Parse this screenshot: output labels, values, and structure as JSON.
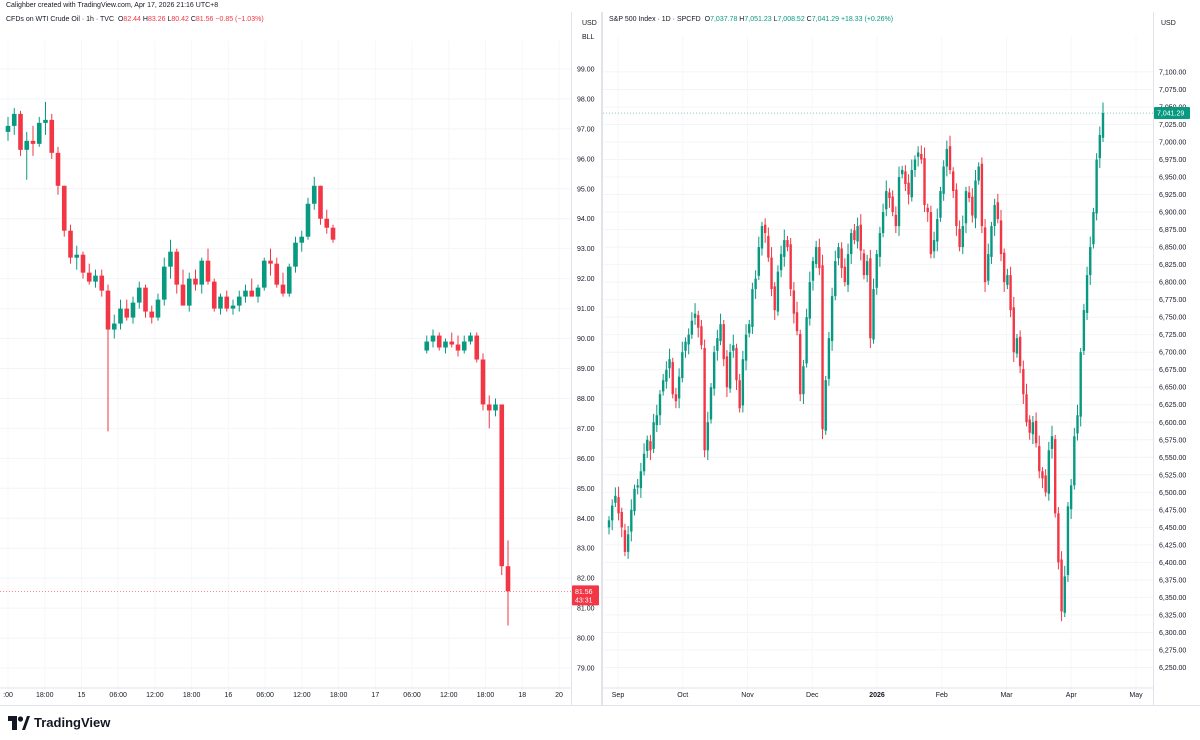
{
  "header": {
    "text": "Calighber created with TradingView.com, Apr 17, 2026 21:16 UTC+8"
  },
  "footer": {
    "brand": "TradingView"
  },
  "left_legend": {
    "title": "CFDs on WTI Crude Oil · 1h · TVC",
    "o": "O",
    "o_val": "82.44",
    "h": "H",
    "h_val": "83.26",
    "l": "L",
    "l_val": "80.42",
    "c": "C",
    "c_val": "81.56",
    "chg": "−0.85 (−1.03%)"
  },
  "left_currency": "USD",
  "left_unit": "BLL",
  "left_price_tag": "81.56",
  "left_countdown": "43:31",
  "right_legend": {
    "title": "S&P 500 Index · 1D · SPCFD",
    "o": "O",
    "o_val": "7,037.78",
    "h": "H",
    "h_val": "7,051.23",
    "l": "L",
    "l_val": "7,008.52",
    "c": "C",
    "c_val": "7,041.29",
    "chg": "+18.33 (+0.26%)"
  },
  "right_currency": "USD",
  "right_price_tag": "7,041.29",
  "colors": {
    "up": "#089981",
    "down": "#f23645",
    "text": "#131722",
    "grid": "#f0f3fa"
  },
  "chart_data": [
    {
      "type": "candlestick",
      "title": "CFDs on WTI Crude Oil · 1h · TVC",
      "y_range": [
        78.6,
        99.6
      ],
      "y_ticks": [
        "99.00",
        "98.00",
        "97.00",
        "96.00",
        "95.00",
        "94.00",
        "93.00",
        "92.00",
        "91.00",
        "90.00",
        "89.00",
        "88.00",
        "87.00",
        "86.00",
        "85.00",
        "84.00",
        "83.00",
        "82.00",
        "81.00",
        "80.00",
        "79.00"
      ],
      "x_ticks": [
        ":00",
        "18:00",
        "15",
        "06:00",
        "12:00",
        "18:00",
        "16",
        "06:00",
        "12:00",
        "18:00",
        "17",
        "06:00",
        "12:00",
        "18:00",
        "18",
        "20"
      ],
      "last_price": 81.56,
      "ohlc": [
        [
          96.9,
          97.4,
          96.6,
          97.1
        ],
        [
          97.1,
          97.7,
          96.8,
          97.5
        ],
        [
          97.5,
          97.6,
          96.1,
          96.3
        ],
        [
          96.3,
          96.9,
          95.3,
          96.6
        ],
        [
          96.6,
          97.1,
          96.1,
          96.5
        ],
        [
          96.5,
          97.4,
          96.4,
          97.2
        ],
        [
          97.2,
          97.9,
          96.8,
          97.3
        ],
        [
          97.3,
          97.5,
          96.0,
          96.2
        ],
        [
          96.2,
          96.4,
          94.8,
          95.1
        ],
        [
          95.1,
          95.1,
          93.4,
          93.6
        ],
        [
          93.6,
          93.8,
          92.5,
          92.7
        ],
        [
          92.7,
          93.1,
          92.3,
          92.8
        ],
        [
          92.8,
          92.9,
          92.0,
          92.2
        ],
        [
          92.2,
          92.5,
          91.8,
          91.9
        ],
        [
          91.9,
          92.3,
          91.7,
          92.1
        ],
        [
          92.1,
          92.3,
          91.4,
          91.6
        ],
        [
          91.6,
          91.8,
          86.9,
          90.3
        ],
        [
          90.3,
          90.8,
          90.0,
          90.5
        ],
        [
          90.5,
          91.3,
          90.3,
          91.0
        ],
        [
          91.0,
          91.3,
          90.6,
          90.7
        ],
        [
          90.7,
          91.4,
          90.5,
          91.2
        ],
        [
          91.2,
          91.9,
          91.0,
          91.7
        ],
        [
          91.7,
          91.8,
          90.7,
          90.9
        ],
        [
          90.9,
          91.1,
          90.5,
          90.7
        ],
        [
          90.7,
          91.5,
          90.6,
          91.3
        ],
        [
          91.3,
          92.7,
          91.1,
          92.4
        ],
        [
          92.4,
          93.3,
          92.0,
          92.9
        ],
        [
          92.9,
          93.0,
          91.5,
          91.8
        ],
        [
          91.8,
          92.3,
          91.3,
          91.1
        ],
        [
          91.1,
          92.2,
          90.9,
          92.0
        ],
        [
          92.0,
          92.3,
          91.6,
          91.8
        ],
        [
          91.8,
          92.7,
          91.5,
          92.6
        ],
        [
          92.6,
          93.0,
          91.8,
          91.9
        ],
        [
          91.9,
          92.0,
          90.9,
          91.0
        ],
        [
          91.0,
          91.5,
          90.8,
          91.4
        ],
        [
          91.4,
          91.6,
          90.9,
          91.0
        ],
        [
          91.0,
          91.3,
          90.8,
          91.1
        ],
        [
          91.1,
          91.6,
          90.9,
          91.4
        ],
        [
          91.4,
          91.8,
          91.2,
          91.6
        ],
        [
          91.6,
          92.0,
          91.5,
          91.4
        ],
        [
          91.4,
          91.8,
          91.2,
          91.7
        ],
        [
          91.7,
          92.7,
          91.6,
          92.6
        ],
        [
          92.6,
          93.0,
          92.1,
          92.5
        ],
        [
          92.5,
          92.7,
          91.7,
          91.8
        ],
        [
          91.8,
          92.2,
          91.4,
          91.5
        ],
        [
          91.5,
          92.5,
          91.4,
          92.4
        ],
        [
          92.4,
          93.4,
          92.2,
          93.2
        ],
        [
          93.2,
          93.6,
          92.9,
          93.4
        ],
        [
          93.4,
          94.7,
          93.3,
          94.5
        ],
        [
          94.5,
          95.4,
          94.3,
          95.1
        ],
        [
          95.1,
          95.1,
          93.8,
          94.0
        ],
        [
          94.0,
          94.3,
          93.5,
          93.7
        ],
        [
          93.7,
          93.8,
          93.2,
          93.3
        ],
        [
          89.6,
          90.1,
          89.5,
          89.9
        ],
        [
          89.9,
          90.3,
          89.7,
          90.1
        ],
        [
          90.1,
          90.2,
          89.6,
          89.7
        ],
        [
          89.7,
          90.0,
          89.5,
          89.9
        ],
        [
          89.9,
          90.2,
          89.7,
          89.8
        ],
        [
          89.8,
          90.1,
          89.4,
          89.6
        ],
        [
          89.6,
          90.1,
          89.5,
          89.9
        ],
        [
          89.9,
          90.2,
          89.8,
          90.1
        ],
        [
          90.1,
          90.2,
          89.2,
          89.3
        ],
        [
          89.3,
          89.5,
          87.6,
          87.8
        ],
        [
          87.8,
          88.1,
          87.0,
          87.6
        ],
        [
          87.6,
          88.0,
          87.4,
          87.8
        ],
        [
          87.8,
          87.8,
          82.1,
          82.4
        ],
        [
          82.4,
          83.26,
          80.42,
          81.56
        ]
      ],
      "gap_after_index": 52
    },
    {
      "type": "candlestick",
      "title": "S&P 500 Index · 1D · SPCFD",
      "y_range": [
        6225,
        7137
      ],
      "y_ticks": [
        "7,100.00",
        "7,075.00",
        "7,050.00",
        "7,025.00",
        "7,000.00",
        "6,975.00",
        "6,950.00",
        "6,925.00",
        "6,900.00",
        "6,875.00",
        "6,850.00",
        "6,825.00",
        "6,800.00",
        "6,775.00",
        "6,750.00",
        "6,725.00",
        "6,700.00",
        "6,675.00",
        "6,650.00",
        "6,625.00",
        "6,600.00",
        "6,575.00",
        "6,550.00",
        "6,525.00",
        "6,500.00",
        "6,475.00",
        "6,450.00",
        "6,425.00",
        "6,400.00",
        "6,375.00",
        "6,350.00",
        "6,325.00",
        "6,300.00",
        "6,275.00",
        "6,250.00"
      ],
      "x_ticks": [
        "Sep",
        "Oct",
        "Nov",
        "Dec",
        "2026",
        "Feb",
        "Mar",
        "Apr",
        "May"
      ],
      "last_price": 7041.29,
      "closes": [
        6460,
        6481,
        6495,
        6470,
        6450,
        6415,
        6440,
        6475,
        6505,
        6510,
        6530,
        6555,
        6575,
        6560,
        6600,
        6610,
        6640,
        6660,
        6675,
        6690,
        6640,
        6630,
        6665,
        6700,
        6715,
        6725,
        6745,
        6755,
        6735,
        6710,
        6560,
        6600,
        6650,
        6700,
        6720,
        6740,
        6690,
        6650,
        6700,
        6710,
        6660,
        6620,
        6690,
        6725,
        6740,
        6790,
        6805,
        6850,
        6880,
        6870,
        6835,
        6790,
        6760,
        6815,
        6840,
        6860,
        6850,
        6790,
        6755,
        6730,
        6640,
        6680,
        6750,
        6800,
        6830,
        6850,
        6820,
        6590,
        6660,
        6720,
        6780,
        6830,
        6850,
        6820,
        6800,
        6840,
        6870,
        6860,
        6880,
        6845,
        6810,
        6830,
        6720,
        6790,
        6840,
        6870,
        6900,
        6930,
        6920,
        6900,
        6880,
        6950,
        6960,
        6940,
        6925,
        6960,
        6975,
        6985,
        6975,
        6910,
        6900,
        6840,
        6860,
        6890,
        6930,
        6965,
        6990,
        6960,
        6930,
        6880,
        6850,
        6880,
        6930,
        6920,
        6895,
        6945,
        6965,
        6880,
        6800,
        6840,
        6880,
        6910,
        6890,
        6840,
        6800,
        6810,
        6760,
        6700,
        6720,
        6680,
        6640,
        6600,
        6585,
        6600,
        6570,
        6530,
        6520,
        6500,
        6560,
        6580,
        6470,
        6400,
        6330,
        6380,
        6480,
        6510,
        6580,
        6610,
        6700,
        6760,
        6810,
        6850,
        6900,
        6975,
        7010,
        7041.29
      ]
    }
  ]
}
